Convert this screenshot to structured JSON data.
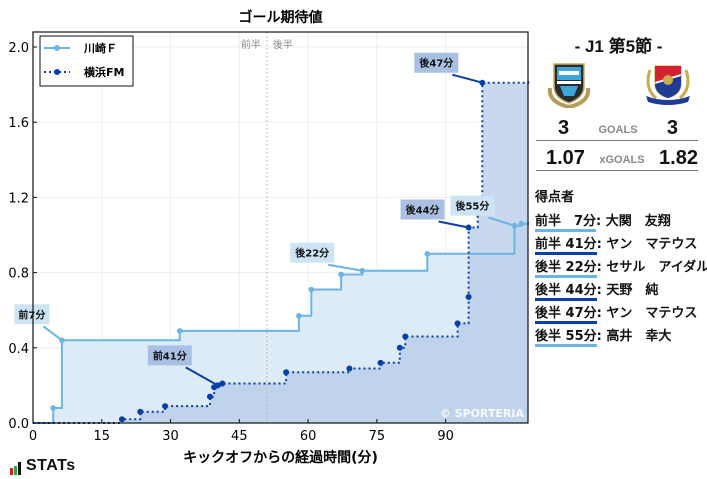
{
  "chart_data": {
    "type": "line",
    "subtype": "step-cumulative-area",
    "title": "ゴール期待値",
    "xlabel": "キックオフからの経過時間(分)",
    "ylabel": "",
    "xlim": [
      0,
      108
    ],
    "ylim": [
      0,
      2.1
    ],
    "xticks": [
      0,
      15,
      30,
      45,
      60,
      75,
      90
    ],
    "yticks": [
      0.0,
      0.4,
      0.8,
      1.2,
      1.6,
      2.0
    ],
    "grid": true,
    "legend_position": "upper left",
    "halftime_marker": {
      "x": 51,
      "label_left": "前半",
      "label_right": "後半"
    },
    "watermark": "© SPORTERIA",
    "series": [
      {
        "name": "川崎Ｆ",
        "color": "#6cb4e4",
        "fill": "#ddebf7",
        "linestyle": "solid",
        "points": [
          [
            0,
            0
          ],
          [
            4.4,
            0.08
          ],
          [
            6.3,
            0.44
          ],
          [
            32,
            0.49
          ],
          [
            58,
            0.57
          ],
          [
            60.7,
            0.71
          ],
          [
            67.2,
            0.79
          ],
          [
            71.8,
            0.81
          ],
          [
            86,
            0.9
          ],
          [
            105,
            1.05
          ],
          [
            106.5,
            1.06
          ],
          [
            108,
            1.07
          ]
        ],
        "goals": [
          {
            "label": "前7分",
            "x": 6.3,
            "y": 0.44
          },
          {
            "label": "後22分",
            "x": 71.8,
            "y": 0.81
          },
          {
            "label": "後55分",
            "x": 105,
            "y": 1.05
          }
        ]
      },
      {
        "name": "横浜FM",
        "color": "#0a3ea8",
        "fill": "#b6cbe8",
        "linestyle": "dotted",
        "points": [
          [
            0,
            0
          ],
          [
            19.4,
            0.02
          ],
          [
            23.4,
            0.06
          ],
          [
            28.8,
            0.09
          ],
          [
            38.6,
            0.14
          ],
          [
            39.5,
            0.19
          ],
          [
            40.3,
            0.2
          ],
          [
            41.3,
            0.21
          ],
          [
            55.2,
            0.27
          ],
          [
            69,
            0.29
          ],
          [
            75.8,
            0.32
          ],
          [
            80,
            0.4
          ],
          [
            81.2,
            0.46
          ],
          [
            92.6,
            0.53
          ],
          [
            95,
            0.67
          ],
          [
            95,
            1.04
          ],
          [
            97,
            1.12
          ],
          [
            98,
            1.81
          ],
          [
            108,
            1.82
          ]
        ],
        "goals": [
          {
            "label": "前41分",
            "x": 40.3,
            "y": 0.2
          },
          {
            "label": "後44分",
            "x": 95,
            "y": 1.04
          },
          {
            "label": "後47分",
            "x": 98,
            "y": 1.81
          }
        ]
      }
    ]
  },
  "match": {
    "round": "- J1 第5節 -",
    "home": {
      "name": "川崎Ｆ",
      "goals": "3",
      "xgoals": "1.07"
    },
    "away": {
      "name": "横浜FM",
      "goals": "3",
      "xgoals": "1.82"
    },
    "goals_label": "GOALS",
    "xgoals_label": "xGOALS"
  },
  "scorers": {
    "title": "得点者",
    "items": [
      {
        "when": "前半　7分",
        "name": "大関　友翔",
        "team": "home"
      },
      {
        "when": "前半 41分",
        "name": "ヤン　マテウス",
        "team": "away"
      },
      {
        "when": "後半 22分",
        "name": "セサル　アイダル",
        "team": "home"
      },
      {
        "when": "後半 44分",
        "name": "天野　純",
        "team": "away"
      },
      {
        "when": "後半 47分",
        "name": "ヤン　マテウス",
        "team": "away"
      },
      {
        "when": "後半 55分",
        "name": "高井　幸大",
        "team": "home"
      }
    ]
  },
  "colors": {
    "home": "#6cb4e4",
    "away": "#0a3ea8"
  },
  "brand": {
    "stats_label": "STATs"
  }
}
